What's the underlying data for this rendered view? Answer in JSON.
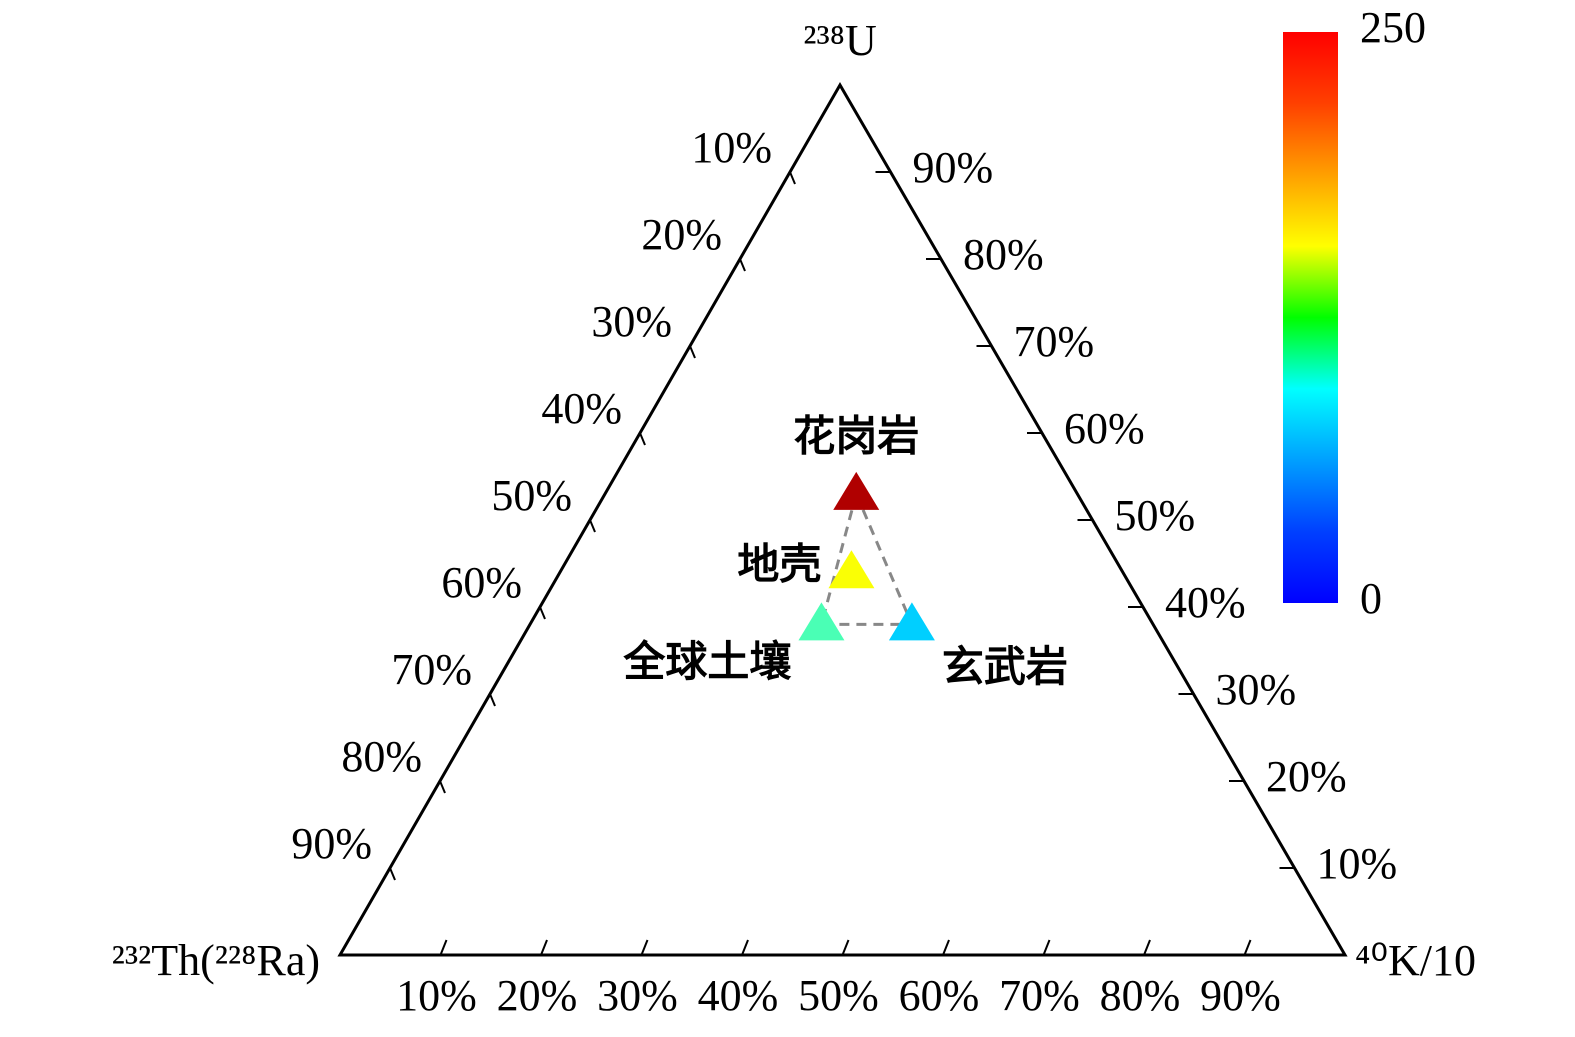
{
  "chart_data": {
    "type": "ternary",
    "apex_labels": {
      "top": "²³⁸U",
      "left": "²³²Th(²²⁸Ra)",
      "right": "⁴⁰K/10"
    },
    "left_ticks": [
      {
        "value": 10,
        "label": "10%"
      },
      {
        "value": 20,
        "label": "20%"
      },
      {
        "value": 30,
        "label": "30%"
      },
      {
        "value": 40,
        "label": "40%"
      },
      {
        "value": 50,
        "label": "50%"
      },
      {
        "value": 60,
        "label": "60%"
      },
      {
        "value": 70,
        "label": "70%"
      },
      {
        "value": 80,
        "label": "80%"
      },
      {
        "value": 90,
        "label": "90%"
      }
    ],
    "right_ticks": [
      {
        "value": 10,
        "label": "10%"
      },
      {
        "value": 20,
        "label": "20%"
      },
      {
        "value": 30,
        "label": "30%"
      },
      {
        "value": 40,
        "label": "40%"
      },
      {
        "value": 50,
        "label": "50%"
      },
      {
        "value": 60,
        "label": "60%"
      },
      {
        "value": 70,
        "label": "70%"
      },
      {
        "value": 80,
        "label": "80%"
      },
      {
        "value": 90,
        "label": "90%"
      }
    ],
    "bottom_ticks": [
      {
        "value": 10,
        "label": "10%"
      },
      {
        "value": 20,
        "label": "20%"
      },
      {
        "value": 30,
        "label": "30%"
      },
      {
        "value": 40,
        "label": "40%"
      },
      {
        "value": 50,
        "label": "50%"
      },
      {
        "value": 60,
        "label": "60%"
      },
      {
        "value": 70,
        "label": "70%"
      },
      {
        "value": 80,
        "label": "80%"
      },
      {
        "value": 90,
        "label": "90%"
      }
    ],
    "points": [
      {
        "name": "花岗岩",
        "u": 53,
        "th": 22,
        "k": 25,
        "cvalue": 238
      },
      {
        "name": "地壳",
        "u": 44,
        "th": 27,
        "k": 29,
        "cvalue": 155
      },
      {
        "name": "全球土壤",
        "u": 38,
        "th": 33,
        "k": 29,
        "cvalue": 112
      },
      {
        "name": "玄武岩",
        "u": 38,
        "th": 24,
        "k": 38,
        "cvalue": 82
      }
    ],
    "colormap": "jet",
    "clim": [
      0,
      250
    ],
    "cticks": [
      0,
      250
    ]
  }
}
